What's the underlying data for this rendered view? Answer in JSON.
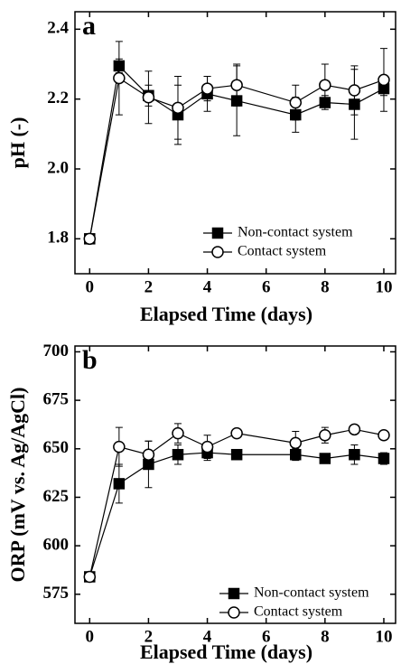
{
  "chart_data": [
    {
      "type": "line",
      "panel_label": "a",
      "x_label": "Elapsed Time (days)",
      "y_label": "pH (-)",
      "x": [
        0,
        1,
        2,
        3,
        4,
        5,
        7,
        8,
        9,
        10
      ],
      "xlim": [
        -0.5,
        10.4
      ],
      "xticks": [
        0,
        2,
        4,
        6,
        8,
        10
      ],
      "ylim": [
        1.7,
        2.45
      ],
      "yticks": [
        1.8,
        {
          "value": 2.0,
          "label": "2.0"
        },
        2.2,
        2.4
      ],
      "legend": "lower right",
      "series": [
        {
          "name": "Non-contact system",
          "color": "#000000",
          "marker": "square",
          "values": [
            1.8,
            2.295,
            2.21,
            2.155,
            2.215,
            2.195,
            2.155,
            2.19,
            2.185,
            2.23
          ],
          "errors": [
            0,
            0.02,
            0.03,
            0.085,
            0.05,
            0.1,
            0.05,
            0.02,
            0.1,
            0.02
          ]
        },
        {
          "name": "Contact system",
          "color": "#000000",
          "marker": "circle",
          "values": [
            1.8,
            2.26,
            2.205,
            2.175,
            2.23,
            2.24,
            2.19,
            2.24,
            2.225,
            2.255
          ],
          "errors": [
            0,
            0.105,
            0.075,
            0.09,
            0.035,
            0.06,
            0.05,
            0.06,
            0.07,
            0.09
          ]
        }
      ]
    },
    {
      "type": "line",
      "panel_label": "b",
      "x_label": "Elapsed Time (days)",
      "y_label": "ORP (mV vs. Ag/AgCl)",
      "x": [
        0,
        1,
        2,
        3,
        4,
        5,
        7,
        8,
        9,
        10
      ],
      "xlim": [
        -0.5,
        10.4
      ],
      "xticks": [
        0,
        2,
        4,
        6,
        8,
        10
      ],
      "ylim": [
        560,
        703
      ],
      "yticks": [
        575,
        600,
        625,
        650,
        675,
        700
      ],
      "legend": "lower right",
      "series": [
        {
          "name": "Non-contact system",
          "color": "#000000",
          "marker": "square",
          "values": [
            584,
            632,
            642,
            647,
            648,
            647,
            647,
            645,
            647,
            645
          ],
          "errors": [
            0,
            10,
            12,
            5,
            4,
            2,
            3,
            2,
            5,
            3
          ]
        },
        {
          "name": "Contact system",
          "color": "#000000",
          "marker": "circle",
          "values": [
            584,
            651,
            647,
            658,
            651,
            658,
            653,
            657,
            660,
            657
          ],
          "errors": [
            0,
            10,
            7,
            5,
            6,
            2,
            6,
            4,
            2,
            2
          ]
        }
      ]
    }
  ]
}
